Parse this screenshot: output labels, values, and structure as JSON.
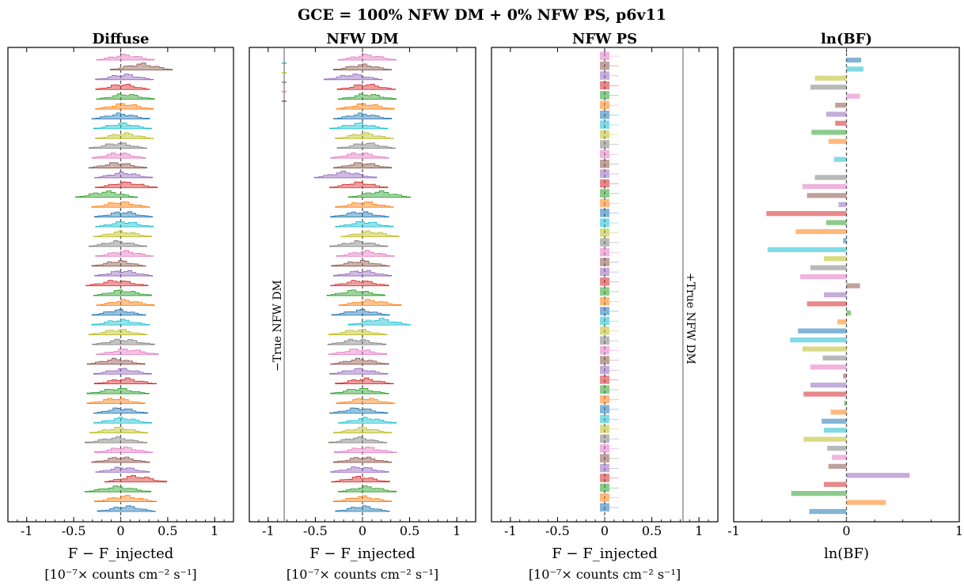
{
  "figure": {
    "suptitle": "GCE = 100% NFW DM + 0% NFW PS, p6v11"
  },
  "panel_titles": [
    "Diffuse",
    "NFW DM",
    "NFW PS",
    "ln(BF)"
  ],
  "annotations": {
    "minus_true": "−True NFW DM",
    "plus_true": "+True NFW DM"
  },
  "chart_data": [
    {
      "type": "histogram-stack",
      "title": "Diffuse",
      "xlabel": "F − F_injected",
      "xunits": "[10⁻⁷× counts cm⁻² s⁻¹]",
      "xlim": [
        -1.2,
        1.2
      ],
      "xticks": [
        -1,
        -0.5,
        0,
        0.5,
        1
      ],
      "xtick_labels": [
        "-1",
        "-0.5",
        "0",
        "0.5",
        "1"
      ],
      "reference_line": 0,
      "rows": [
        {
          "center": 0.06,
          "width": 0.14,
          "height": 0.7
        },
        {
          "center": 0.05,
          "width": 0.15,
          "height": 0.75
        },
        {
          "center": -0.03,
          "width": 0.16,
          "height": 0.7
        },
        {
          "center": 0.16,
          "width": 0.15,
          "height": 0.8
        },
        {
          "center": 0.02,
          "width": 0.13,
          "height": 0.65
        },
        {
          "center": 0.0,
          "width": 0.14,
          "height": 0.7
        },
        {
          "center": 0.03,
          "width": 0.14,
          "height": 0.7
        },
        {
          "center": -0.05,
          "width": 0.15,
          "height": 0.7
        },
        {
          "center": -0.02,
          "width": 0.14,
          "height": 0.7
        },
        {
          "center": 0.02,
          "width": 0.14,
          "height": 0.7
        },
        {
          "center": 0.0,
          "width": 0.13,
          "height": 0.7
        },
        {
          "center": -0.05,
          "width": 0.14,
          "height": 0.7
        },
        {
          "center": -0.03,
          "width": 0.15,
          "height": 0.7
        },
        {
          "center": 0.05,
          "width": 0.15,
          "height": 0.7
        },
        {
          "center": 0.02,
          "width": 0.14,
          "height": 0.7
        },
        {
          "center": -0.05,
          "width": 0.14,
          "height": 0.7
        },
        {
          "center": 0.07,
          "width": 0.15,
          "height": 0.7
        },
        {
          "center": 0.03,
          "width": 0.15,
          "height": 0.7
        },
        {
          "center": -0.03,
          "width": 0.14,
          "height": 0.7
        },
        {
          "center": 0.0,
          "width": 0.14,
          "height": 0.7
        },
        {
          "center": -0.02,
          "width": 0.13,
          "height": 0.7
        },
        {
          "center": 0.05,
          "width": 0.14,
          "height": 0.7
        },
        {
          "center": 0.02,
          "width": 0.14,
          "height": 0.7
        },
        {
          "center": -0.04,
          "width": 0.15,
          "height": 0.7
        },
        {
          "center": 0.03,
          "width": 0.14,
          "height": 0.7
        },
        {
          "center": -0.02,
          "width": 0.13,
          "height": 0.7
        },
        {
          "center": 0.04,
          "width": 0.14,
          "height": 0.7
        },
        {
          "center": -0.03,
          "width": 0.14,
          "height": 0.7
        },
        {
          "center": 0.02,
          "width": 0.14,
          "height": 0.7
        },
        {
          "center": 0.04,
          "width": 0.14,
          "height": 0.7
        },
        {
          "center": 0.03,
          "width": 0.14,
          "height": 0.7
        },
        {
          "center": 0.0,
          "width": 0.14,
          "height": 0.7
        },
        {
          "center": -0.15,
          "width": 0.15,
          "height": 0.8
        },
        {
          "center": 0.06,
          "width": 0.15,
          "height": 0.7
        },
        {
          "center": 0.03,
          "width": 0.14,
          "height": 0.7
        },
        {
          "center": -0.03,
          "width": 0.14,
          "height": 0.7
        },
        {
          "center": -0.02,
          "width": 0.13,
          "height": 0.7
        },
        {
          "center": -0.03,
          "width": 0.14,
          "height": 0.7
        },
        {
          "center": 0.04,
          "width": 0.14,
          "height": 0.7
        },
        {
          "center": 0.02,
          "width": 0.14,
          "height": 0.7
        },
        {
          "center": 0.0,
          "width": 0.14,
          "height": 0.7
        },
        {
          "center": 0.04,
          "width": 0.14,
          "height": 0.7
        },
        {
          "center": 0.05,
          "width": 0.14,
          "height": 0.7
        },
        {
          "center": 0.02,
          "width": 0.13,
          "height": 0.7
        },
        {
          "center": 0.04,
          "width": 0.14,
          "height": 0.7
        },
        {
          "center": 0.22,
          "width": 0.15,
          "height": 0.8
        },
        {
          "center": 0.05,
          "width": 0.14,
          "height": 0.7
        }
      ]
    },
    {
      "type": "histogram-stack",
      "title": "NFW DM",
      "xlabel": "F − F_injected",
      "xunits": "[10⁻⁷× counts cm⁻² s⁻¹]",
      "xlim": [
        -1.2,
        1.2
      ],
      "xticks": [
        -1,
        -0.5,
        0,
        0.5,
        1
      ],
      "xtick_labels": [
        "-1",
        "-0.5",
        "0",
        "0.5",
        "1"
      ],
      "reference_line": 0,
      "true_lines": [
        -0.83
      ],
      "rows": [
        {
          "center": 0.0,
          "width": 0.13,
          "height": 0.7
        },
        {
          "center": 0.0,
          "width": 0.14,
          "height": 0.7
        },
        {
          "center": 0.05,
          "width": 0.14,
          "height": 0.7
        },
        {
          "center": -0.02,
          "width": 0.14,
          "height": 0.7
        },
        {
          "center": -0.03,
          "width": 0.14,
          "height": 0.7
        },
        {
          "center": 0.0,
          "width": 0.14,
          "height": 0.7
        },
        {
          "center": 0.03,
          "width": 0.15,
          "height": 0.7
        },
        {
          "center": -0.05,
          "width": 0.14,
          "height": 0.7
        },
        {
          "center": 0.0,
          "width": 0.14,
          "height": 0.7
        },
        {
          "center": 0.05,
          "width": 0.14,
          "height": 0.7
        },
        {
          "center": -0.04,
          "width": 0.14,
          "height": 0.7
        },
        {
          "center": 0.03,
          "width": 0.14,
          "height": 0.7
        },
        {
          "center": -0.03,
          "width": 0.14,
          "height": 0.7
        },
        {
          "center": 0.02,
          "width": 0.14,
          "height": 0.7
        },
        {
          "center": -0.04,
          "width": 0.14,
          "height": 0.7
        },
        {
          "center": -0.03,
          "width": 0.14,
          "height": 0.7
        },
        {
          "center": -0.05,
          "width": 0.14,
          "height": 0.7
        },
        {
          "center": -0.06,
          "width": 0.14,
          "height": 0.7
        },
        {
          "center": -0.05,
          "width": 0.14,
          "height": 0.7
        },
        {
          "center": 0.18,
          "width": 0.15,
          "height": 0.8
        },
        {
          "center": -0.02,
          "width": 0.14,
          "height": 0.7
        },
        {
          "center": 0.08,
          "width": 0.15,
          "height": 0.7
        },
        {
          "center": -0.07,
          "width": 0.14,
          "height": 0.7
        },
        {
          "center": -0.03,
          "width": 0.14,
          "height": 0.7
        },
        {
          "center": 0.0,
          "width": 0.14,
          "height": 0.7
        },
        {
          "center": -0.02,
          "width": 0.14,
          "height": 0.7
        },
        {
          "center": 0.03,
          "width": 0.14,
          "height": 0.7
        },
        {
          "center": -0.04,
          "width": 0.14,
          "height": 0.7
        },
        {
          "center": 0.08,
          "width": 0.14,
          "height": 0.7
        },
        {
          "center": 0.02,
          "width": 0.14,
          "height": 0.7
        },
        {
          "center": -0.03,
          "width": 0.14,
          "height": 0.7
        },
        {
          "center": 0.02,
          "width": 0.14,
          "height": 0.7
        },
        {
          "center": 0.18,
          "width": 0.15,
          "height": 0.8
        },
        {
          "center": -0.04,
          "width": 0.14,
          "height": 0.7
        },
        {
          "center": -0.18,
          "width": 0.15,
          "height": 0.8
        },
        {
          "center": 0.0,
          "width": 0.14,
          "height": 0.7
        },
        {
          "center": -0.03,
          "width": 0.14,
          "height": 0.7
        },
        {
          "center": 0.04,
          "width": 0.14,
          "height": 0.7
        },
        {
          "center": 0.02,
          "width": 0.14,
          "height": 0.7
        },
        {
          "center": -0.04,
          "width": 0.14,
          "height": 0.7
        },
        {
          "center": 0.0,
          "width": 0.14,
          "height": 0.7
        },
        {
          "center": 0.03,
          "width": 0.14,
          "height": 0.7
        },
        {
          "center": 0.05,
          "width": 0.14,
          "height": 0.7
        },
        {
          "center": 0.04,
          "width": 0.14,
          "height": 0.7
        },
        {
          "center": -0.1,
          "width": 0.14,
          "height": 0.7
        },
        {
          "center": 0.0,
          "width": 0.14,
          "height": 0.7
        },
        {
          "center": 0.05,
          "width": 0.14,
          "height": 0.7
        }
      ]
    },
    {
      "type": "histogram-stack",
      "title": "NFW PS",
      "xlabel": "F − F_injected",
      "xunits": "[10⁻⁷× counts cm⁻² s⁻¹]",
      "xlim": [
        -1.2,
        1.2
      ],
      "xticks": [
        -1,
        -0.5,
        0,
        0.5,
        1
      ],
      "xtick_labels": [
        "-1",
        "-0.5",
        "0",
        "0.5",
        "1"
      ],
      "reference_line": 0,
      "true_lines": [
        0.83
      ],
      "rows_center": 0.0,
      "rows_width": 0.02
    },
    {
      "type": "bar",
      "orientation": "horizontal",
      "title": "ln(BF)",
      "xlabel": "ln(BF)",
      "xlim": [
        -1,
        1
      ],
      "xticks": [
        -1,
        0,
        1
      ],
      "xtick_labels": [
        "-1",
        "0",
        "1"
      ],
      "reference_line": 0,
      "values": [
        -0.33,
        0.35,
        -0.49,
        -0.2,
        0.56,
        -0.16,
        -0.13,
        -0.17,
        -0.38,
        -0.2,
        -0.22,
        -0.14,
        -0.02,
        -0.38,
        -0.32,
        -0.03,
        -0.32,
        -0.21,
        -0.39,
        -0.5,
        -0.43,
        -0.08,
        0.04,
        -0.35,
        -0.2,
        0.12,
        -0.41,
        -0.32,
        -0.2,
        -0.7,
        -0.03,
        -0.45,
        -0.18,
        -0.71,
        -0.07,
        -0.35,
        -0.39,
        -0.28,
        0.0,
        -0.11,
        0.0,
        -0.16,
        -0.31,
        -0.1,
        -0.18,
        -0.1,
        0.12,
        -0.32,
        -0.28,
        0.15,
        0.13
      ]
    }
  ],
  "colors": [
    "#1f77b4",
    "#ff7f0e",
    "#2ca02c",
    "#d62728",
    "#9467bd",
    "#8c564b",
    "#e377c2",
    "#7f7f7f",
    "#bcbd22",
    "#17becf"
  ]
}
